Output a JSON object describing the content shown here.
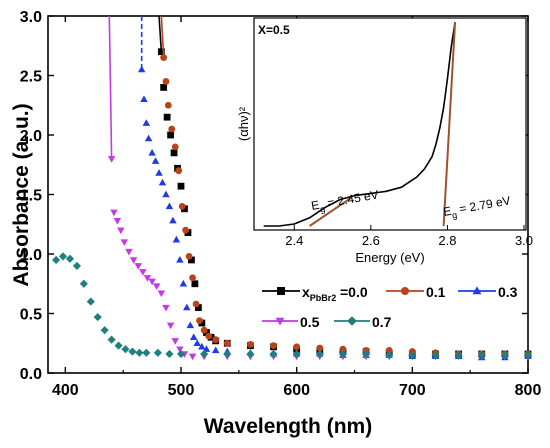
{
  "chart_data": {
    "type": "scatter",
    "xlabel": "Wavelength (nm)",
    "ylabel": "Absorbance (a. u.)",
    "xlim": [
      385,
      800
    ],
    "ylim": [
      0,
      3.0
    ],
    "xticks": [
      400,
      500,
      600,
      700,
      800
    ],
    "xtick_labels": [
      "400",
      "500",
      "600",
      "700",
      "800"
    ],
    "yticks": [
      0.0,
      0.5,
      1.0,
      1.5,
      2.0,
      2.5,
      3.0
    ],
    "ytick_labels": [
      "0.0",
      "0.5",
      "1.0",
      "1.5",
      "2.0",
      "2.5",
      "3.0"
    ],
    "legend": {
      "prefix": "x",
      "subscript": "PbBr2",
      "placement": "inside-right",
      "entries": [
        "=0.0",
        "0.1",
        "0.3",
        "0.5",
        "0.7"
      ]
    },
    "series": [
      {
        "label": "=0.0",
        "color": "#000000",
        "marker": "square",
        "x": [
          481,
          483,
          485,
          488,
          491,
          494,
          497,
          500,
          503,
          506,
          509,
          512,
          515,
          518,
          522,
          526,
          530,
          540,
          560,
          580,
          600,
          620,
          640,
          660,
          680,
          700,
          720,
          740,
          760,
          780,
          800
        ],
        "y": [
          3.0,
          2.7,
          2.4,
          2.15,
          2.0,
          1.85,
          1.72,
          1.57,
          1.38,
          1.18,
          0.95,
          0.75,
          0.55,
          0.42,
          0.34,
          0.3,
          0.27,
          0.25,
          0.23,
          0.22,
          0.2,
          0.19,
          0.18,
          0.18,
          0.17,
          0.16,
          0.16,
          0.16,
          0.16,
          0.16,
          0.16
        ]
      },
      {
        "label": "0.1",
        "color": "#b8431b",
        "marker": "circle",
        "x": [
          483,
          485,
          487,
          489,
          492,
          495,
          498,
          501,
          504,
          507,
          510,
          513,
          516,
          520,
          524,
          530,
          540,
          560,
          580,
          600,
          620,
          640,
          660,
          680,
          700,
          720,
          740,
          760,
          780,
          800
        ],
        "y": [
          3.0,
          2.65,
          2.45,
          2.25,
          2.05,
          1.9,
          1.7,
          1.4,
          1.2,
          0.98,
          0.8,
          0.58,
          0.44,
          0.36,
          0.31,
          0.28,
          0.25,
          0.24,
          0.23,
          0.22,
          0.21,
          0.2,
          0.19,
          0.19,
          0.18,
          0.17,
          0.16,
          0.16,
          0.16,
          0.16
        ]
      },
      {
        "label": "0.3",
        "color": "#1f3be6",
        "marker": "triangle-up",
        "x": [
          466,
          466,
          468,
          470,
          472,
          475,
          478,
          481,
          484,
          487,
          490,
          493,
          496,
          499,
          502,
          505,
          508,
          511,
          514,
          518,
          522,
          530,
          540,
          560,
          580,
          600,
          620,
          640,
          660,
          680,
          700,
          720,
          740,
          760,
          780,
          800
        ],
        "y": [
          3.0,
          2.55,
          2.3,
          2.1,
          1.97,
          1.85,
          1.78,
          1.68,
          1.6,
          1.5,
          1.4,
          1.28,
          1.12,
          0.95,
          0.75,
          0.55,
          0.4,
          0.3,
          0.25,
          0.22,
          0.2,
          0.19,
          0.18,
          0.17,
          0.16,
          0.16,
          0.16,
          0.15,
          0.15,
          0.15,
          0.14,
          0.14,
          0.14,
          0.13,
          0.13,
          0.14
        ]
      },
      {
        "label": "0.5",
        "color": "#c23ae8",
        "marker": "triangle-down",
        "x": [
          438,
          440,
          442,
          445,
          448,
          451,
          455,
          459,
          463,
          467,
          471,
          475,
          479,
          483,
          487,
          491,
          495,
          499,
          503,
          510,
          520,
          540,
          560,
          580,
          600,
          620,
          640,
          660,
          680,
          700,
          720,
          740,
          760,
          780,
          800
        ],
        "y": [
          3.0,
          1.8,
          1.35,
          1.28,
          1.2,
          1.1,
          1.02,
          0.95,
          0.9,
          0.85,
          0.8,
          0.77,
          0.73,
          0.67,
          0.55,
          0.4,
          0.27,
          0.2,
          0.16,
          0.14,
          0.14,
          0.14,
          0.14,
          0.14,
          0.14,
          0.14,
          0.14,
          0.14,
          0.14,
          0.14,
          0.14,
          0.14,
          0.14,
          0.14,
          0.14
        ]
      },
      {
        "label": "0.7",
        "color": "#1f7f7f",
        "marker": "diamond",
        "x": [
          392,
          398,
          404,
          410,
          416,
          422,
          428,
          434,
          440,
          446,
          452,
          458,
          464,
          470,
          480,
          490,
          500,
          520,
          540,
          560,
          580,
          600,
          620,
          640,
          660,
          680,
          700,
          720,
          740,
          760,
          780,
          800
        ],
        "y": [
          0.95,
          0.98,
          0.96,
          0.9,
          0.75,
          0.6,
          0.47,
          0.36,
          0.28,
          0.23,
          0.2,
          0.18,
          0.17,
          0.17,
          0.17,
          0.16,
          0.16,
          0.16,
          0.16,
          0.16,
          0.16,
          0.16,
          0.16,
          0.16,
          0.16,
          0.15,
          0.15,
          0.15,
          0.15,
          0.15,
          0.15,
          0.15
        ]
      }
    ],
    "inset": {
      "type": "line",
      "label": "X=0.5",
      "xlabel": "Energy (eV)",
      "ylabel": "(αhν)²",
      "xlim": [
        2.3,
        3.0
      ],
      "xticks": [
        2.4,
        2.6,
        2.8,
        3.0
      ],
      "xtick_labels": [
        "2.4",
        "2.6",
        "2.8",
        "3.0"
      ],
      "y_relative": [
        0,
        1
      ],
      "curve": {
        "color": "#000000",
        "x": [
          2.32,
          2.36,
          2.4,
          2.44,
          2.48,
          2.52,
          2.56,
          2.6,
          2.64,
          2.68,
          2.72,
          2.74,
          2.76,
          2.77,
          2.78,
          2.79,
          2.8,
          2.81,
          2.82
        ],
        "y": [
          0.0,
          0.0,
          0.01,
          0.04,
          0.09,
          0.13,
          0.15,
          0.16,
          0.17,
          0.19,
          0.24,
          0.28,
          0.34,
          0.4,
          0.48,
          0.58,
          0.72,
          0.88,
          1.0
        ]
      },
      "fits": [
        {
          "color": "#a0522d",
          "x": [
            2.44,
            2.55
          ],
          "y": [
            0.0,
            0.14
          ]
        },
        {
          "color": "#a0522d",
          "x": [
            2.79,
            2.82
          ],
          "y": [
            0.0,
            1.0
          ]
        }
      ],
      "annotations": [
        {
          "main": "E",
          "sub": "g",
          "value": " = 2.45 eV"
        },
        {
          "main": "E",
          "sub": "g",
          "value": " = 2.79 eV"
        }
      ]
    }
  }
}
